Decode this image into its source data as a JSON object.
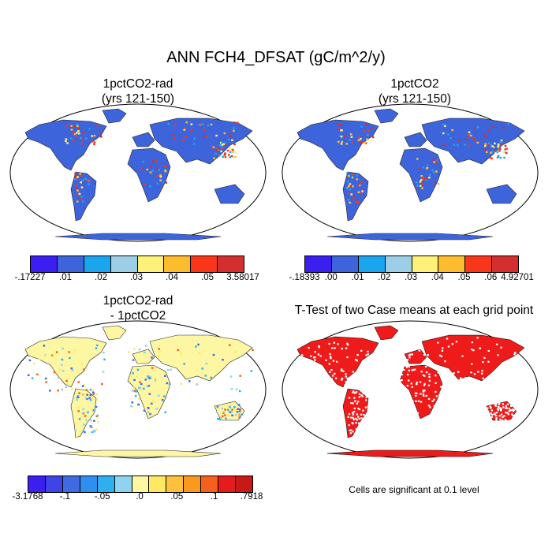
{
  "title": "ANN FCH4_DFSAT (gC/m^2/y)",
  "panels": {
    "top_left": {
      "title": "1pctCO2-rad\n(yrs 121-150)"
    },
    "top_right": {
      "title": "1pctCO2\n(yrs 121-150)"
    },
    "bottom_left": {
      "title": "1pctCO2-rad\n- 1pctCO2"
    },
    "bottom_right": {
      "title": "T-Test of two Case means at each grid point",
      "note": "Cells are significant at 0.1 level"
    }
  },
  "colorbars": {
    "top_left": {
      "colors": [
        "#3b1ef0",
        "#3e64dc",
        "#1aa6ee",
        "#9ccfe6",
        "#fdf17a",
        "#fdbc2d",
        "#f9361a",
        "#d42f2f"
      ],
      "labels": [
        "-.17227",
        ".01",
        ".02",
        ".03",
        ".04",
        ".05",
        "3.58017"
      ]
    },
    "top_right": {
      "colors": [
        "#3b1ef0",
        "#3e64dc",
        "#1aa6ee",
        "#9ccfe6",
        "#fdf17a",
        "#fdbc2d",
        "#f9361a",
        "#d42f2f"
      ],
      "labels": [
        "-.18393",
        ".00",
        ".01",
        ".02",
        ".03",
        ".04",
        ".05",
        ".06",
        "4.92701"
      ]
    },
    "bottom_left": {
      "colors": [
        "#3b1ef0",
        "#3e44e6",
        "#3f6ae0",
        "#2f8ff0",
        "#2fb0ee",
        "#8fd3ee",
        "#fdf6a3",
        "#fdea62",
        "#fdc13c",
        "#f99a1e",
        "#f5601c",
        "#e41c1c",
        "#c81818"
      ],
      "labels": [
        "-3.1768",
        "-.1",
        "-.05",
        ".0",
        ".05",
        ".1",
        ".7918"
      ]
    }
  }
}
